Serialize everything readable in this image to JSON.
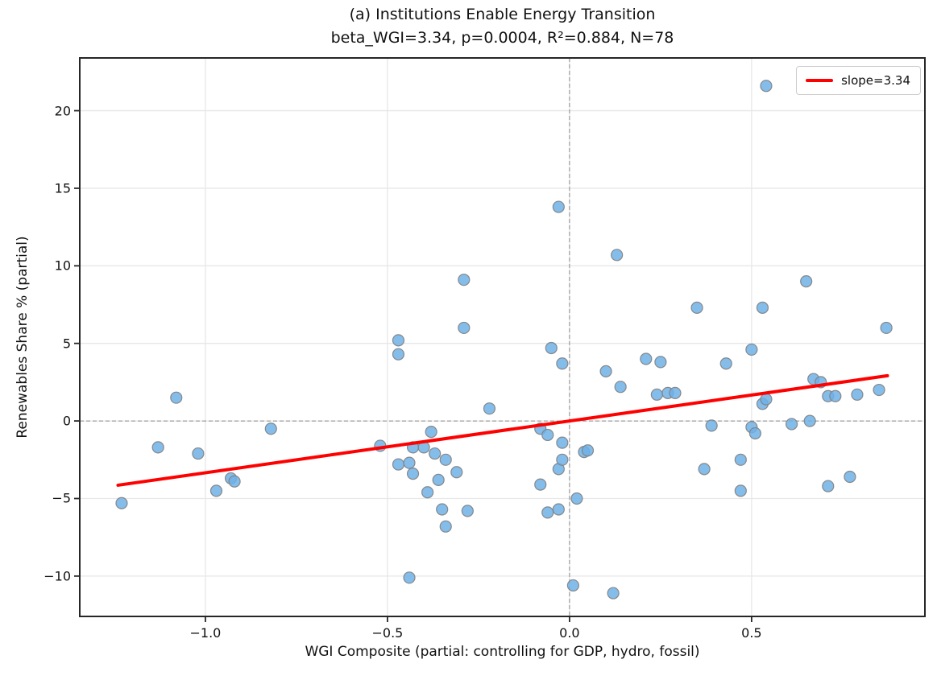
{
  "chart_data": {
    "type": "scatter",
    "title": "(a) Institutions Enable Energy Transition",
    "subtitle": "beta_WGI=3.34, p=0.0004, R²=0.884, N=78",
    "stats": {
      "beta_WGI": 3.34,
      "p": 0.0004,
      "R2": 0.884,
      "N": 78
    },
    "xlabel": "WGI Composite (partial: controlling for GDP, hydro, fossil)",
    "ylabel": "Renewables Share % (partial)",
    "xlim": [
      -1.345,
      0.976
    ],
    "ylim": [
      -12.6,
      23.4
    ],
    "xticks": [
      -1.0,
      -0.5,
      0.0,
      0.5
    ],
    "xtick_labels": [
      "−1.0",
      "−0.5",
      "0.0",
      "0.5"
    ],
    "yticks": [
      20,
      15,
      10,
      5,
      0,
      -5,
      -10
    ],
    "ytick_labels": [
      "20",
      "15",
      "10",
      "5",
      "0",
      "−5",
      "−10"
    ],
    "grid": true,
    "legend": {
      "position": "upper-right",
      "label": "slope=3.34"
    },
    "zero_lines": {
      "x": 0,
      "y": 0,
      "style": "dashed",
      "color": "#8c8c8c"
    },
    "regression_line": {
      "slope": 3.34,
      "intercept": 0.0,
      "x_start": -1.24,
      "x_end": 0.873,
      "color": "#ff0000",
      "width": 4
    },
    "point_style": {
      "fill": "#6fb0e6",
      "edge": "#808080",
      "radius": 7,
      "opacity": 0.85
    },
    "points": [
      [
        -1.23,
        -5.3
      ],
      [
        -1.13,
        -1.7
      ],
      [
        -1.08,
        1.5
      ],
      [
        -1.02,
        -2.1
      ],
      [
        -0.97,
        -4.5
      ],
      [
        -0.93,
        -3.7
      ],
      [
        -0.92,
        -3.9
      ],
      [
        -0.82,
        -0.5
      ],
      [
        -0.52,
        -1.6
      ],
      [
        -0.47,
        5.2
      ],
      [
        -0.47,
        4.3
      ],
      [
        -0.47,
        -2.8
      ],
      [
        -0.44,
        -2.7
      ],
      [
        -0.44,
        -10.1
      ],
      [
        -0.43,
        -1.7
      ],
      [
        -0.43,
        -3.4
      ],
      [
        -0.4,
        -1.7
      ],
      [
        -0.39,
        -4.6
      ],
      [
        -0.38,
        -0.7
      ],
      [
        -0.37,
        -2.1
      ],
      [
        -0.36,
        -3.8
      ],
      [
        -0.35,
        -5.7
      ],
      [
        -0.34,
        -2.5
      ],
      [
        -0.34,
        -6.8
      ],
      [
        -0.31,
        -3.3
      ],
      [
        -0.29,
        9.1
      ],
      [
        -0.29,
        6.0
      ],
      [
        -0.28,
        -5.8
      ],
      [
        -0.22,
        0.8
      ],
      [
        -0.08,
        -0.5
      ],
      [
        -0.08,
        -4.1
      ],
      [
        -0.06,
        -0.9
      ],
      [
        -0.06,
        -5.9
      ],
      [
        -0.05,
        4.7
      ],
      [
        -0.03,
        13.8
      ],
      [
        -0.03,
        -3.1
      ],
      [
        -0.03,
        -5.7
      ],
      [
        -0.02,
        3.7
      ],
      [
        -0.02,
        -1.4
      ],
      [
        -0.02,
        -2.5
      ],
      [
        0.01,
        -10.6
      ],
      [
        0.02,
        -5.0
      ],
      [
        0.04,
        -2.0
      ],
      [
        0.05,
        -1.9
      ],
      [
        0.1,
        3.2
      ],
      [
        0.12,
        -11.1
      ],
      [
        0.13,
        10.7
      ],
      [
        0.14,
        2.2
      ],
      [
        0.21,
        4.0
      ],
      [
        0.24,
        1.7
      ],
      [
        0.25,
        3.8
      ],
      [
        0.27,
        1.8
      ],
      [
        0.29,
        1.8
      ],
      [
        0.35,
        7.3
      ],
      [
        0.37,
        -3.1
      ],
      [
        0.39,
        -0.3
      ],
      [
        0.43,
        3.7
      ],
      [
        0.47,
        -2.5
      ],
      [
        0.47,
        -4.5
      ],
      [
        0.5,
        4.6
      ],
      [
        0.5,
        -0.4
      ],
      [
        0.51,
        -0.8
      ],
      [
        0.53,
        7.3
      ],
      [
        0.53,
        1.1
      ],
      [
        0.54,
        21.6
      ],
      [
        0.54,
        1.4
      ],
      [
        0.61,
        -0.2
      ],
      [
        0.65,
        9.0
      ],
      [
        0.66,
        0.0
      ],
      [
        0.67,
        2.7
      ],
      [
        0.69,
        2.5
      ],
      [
        0.71,
        1.6
      ],
      [
        0.71,
        -4.2
      ],
      [
        0.73,
        1.6
      ],
      [
        0.77,
        -3.6
      ],
      [
        0.79,
        1.7
      ],
      [
        0.85,
        2.0
      ],
      [
        0.87,
        6.0
      ]
    ]
  },
  "colors": {
    "accent_red": "#ff0000",
    "point_blue": "#6fb0e6",
    "grid": "#e7e7e7",
    "spine": "#262626",
    "zero_line": "#8c8c8c"
  }
}
